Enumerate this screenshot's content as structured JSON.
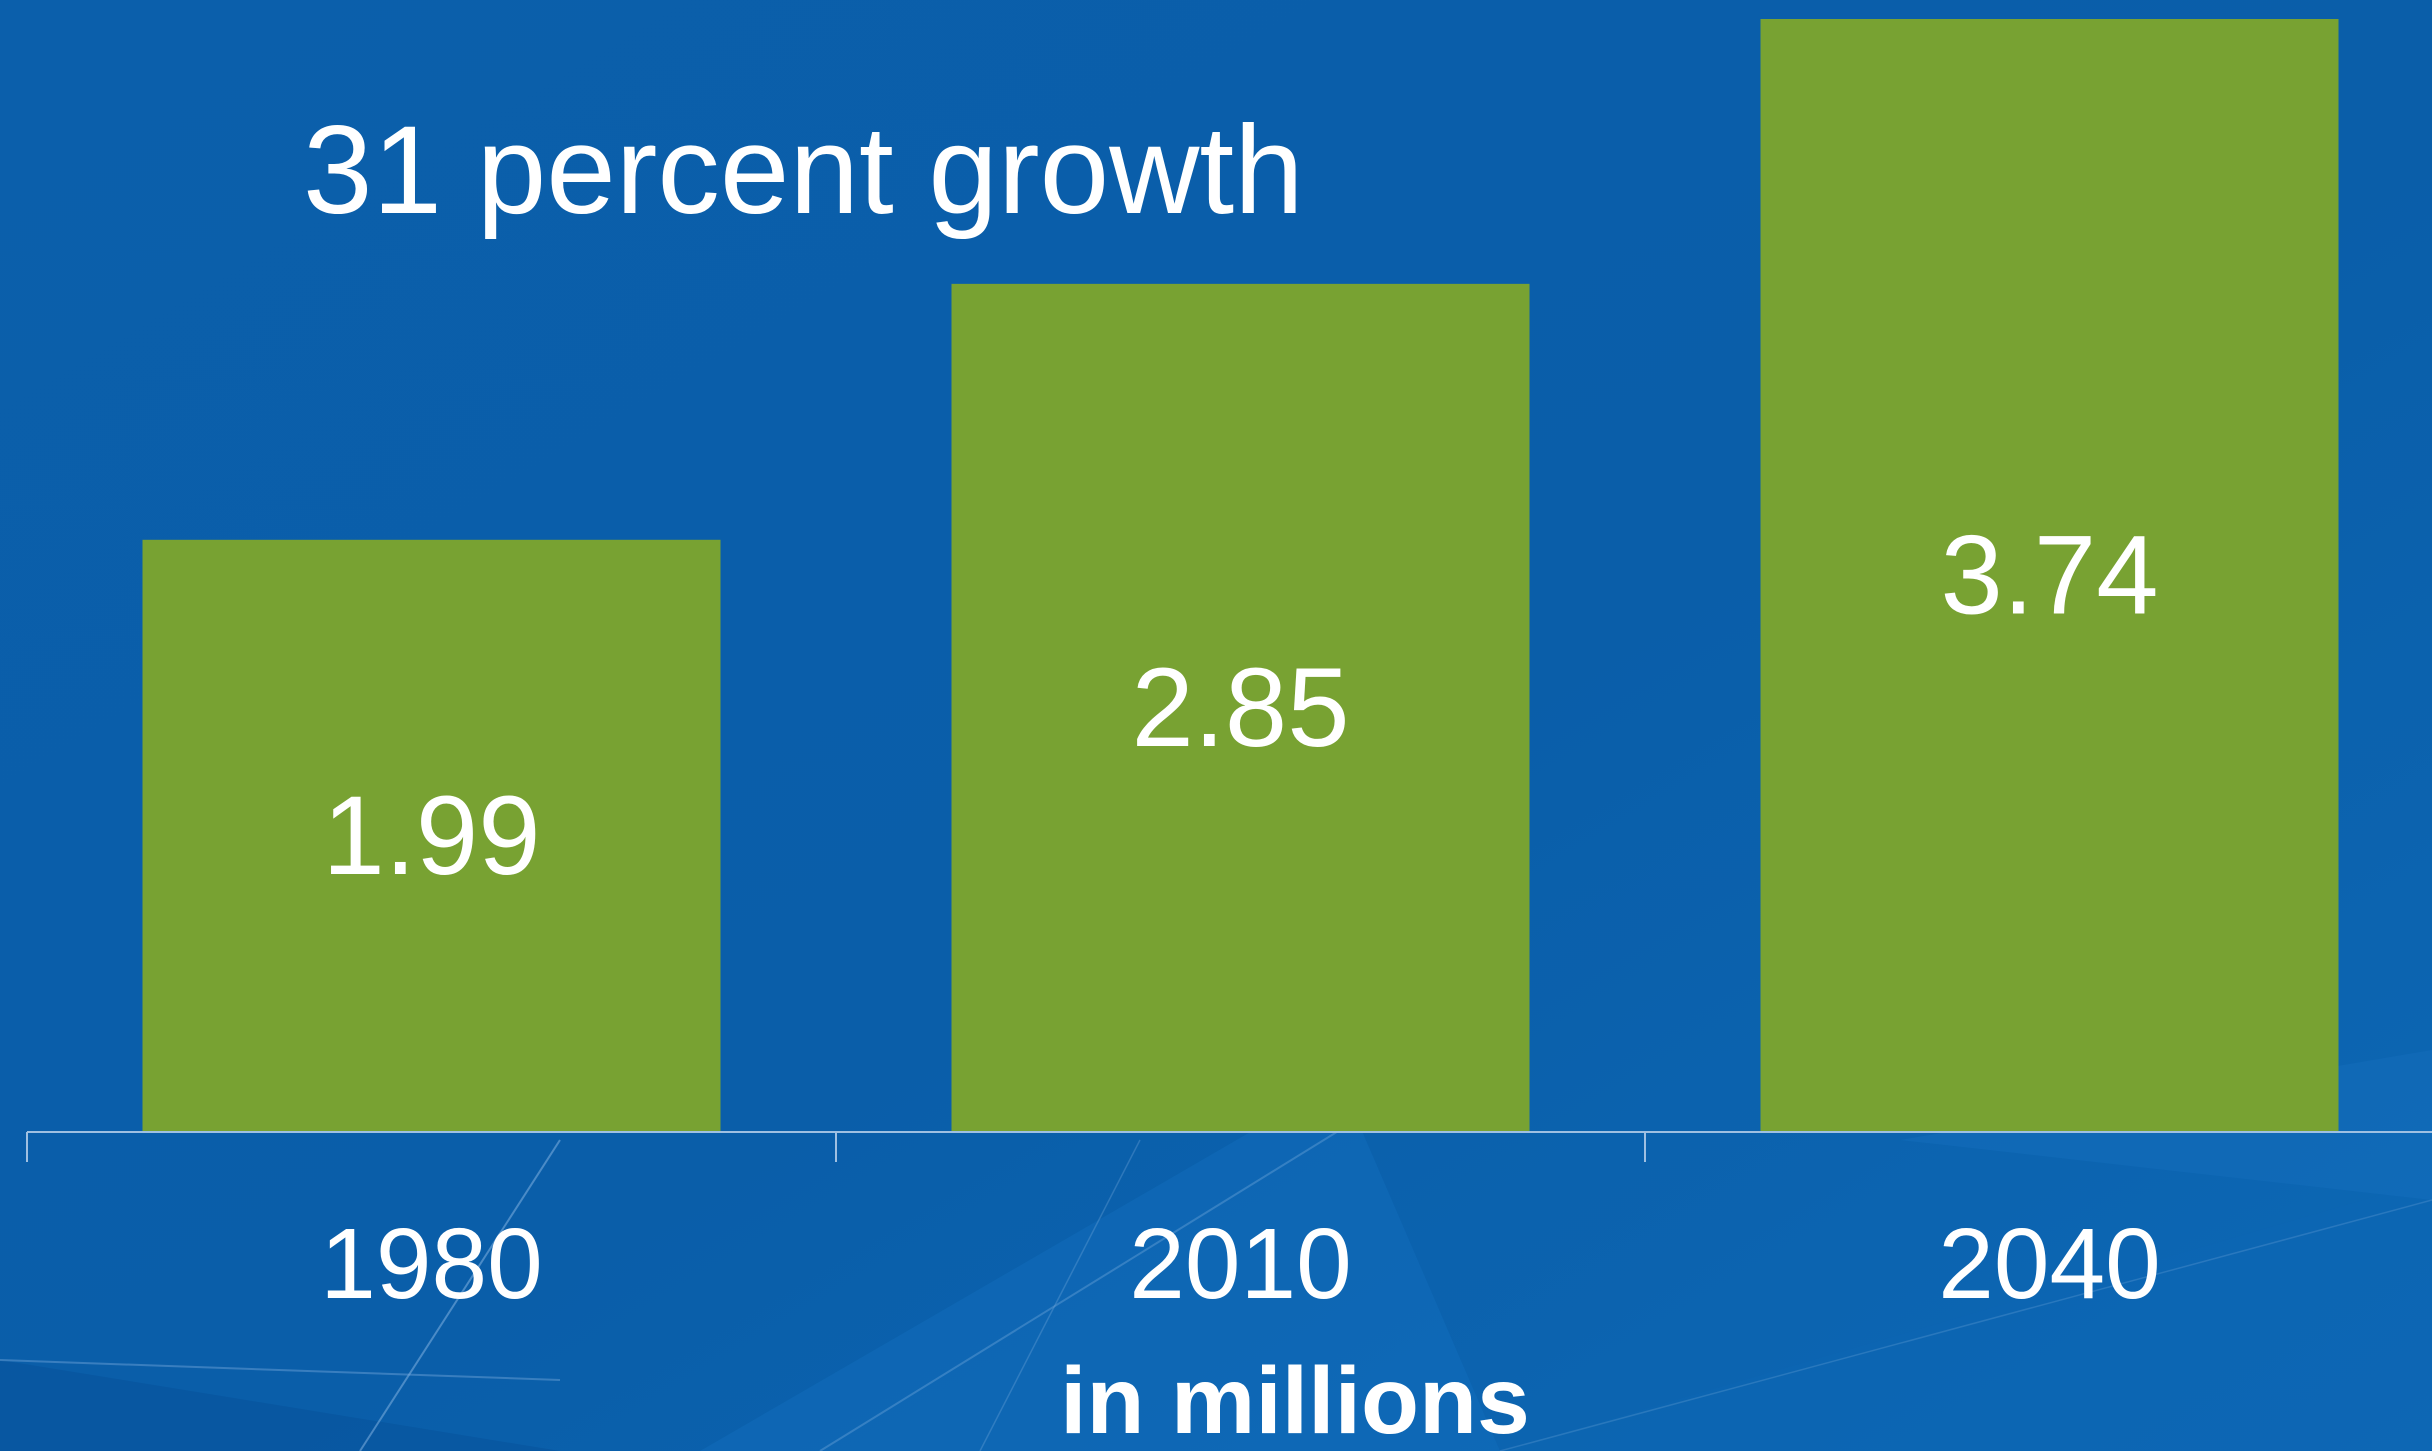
{
  "colors": {
    "background": "#0a5fab",
    "bar": "#78a232",
    "text": "#ffffff",
    "axis": "#9fc0e2"
  },
  "chart_data": {
    "type": "bar",
    "title": "",
    "annotation": "31 percent growth",
    "xlabel": "in millions",
    "ylabel": "",
    "categories": [
      "1980",
      "2010",
      "2040"
    ],
    "values": [
      1.99,
      2.85,
      3.74
    ],
    "data_labels": [
      "1.99",
      "2.85",
      "3.74"
    ],
    "ylim": [
      0,
      3.74
    ],
    "grid": false,
    "legend": "none"
  }
}
